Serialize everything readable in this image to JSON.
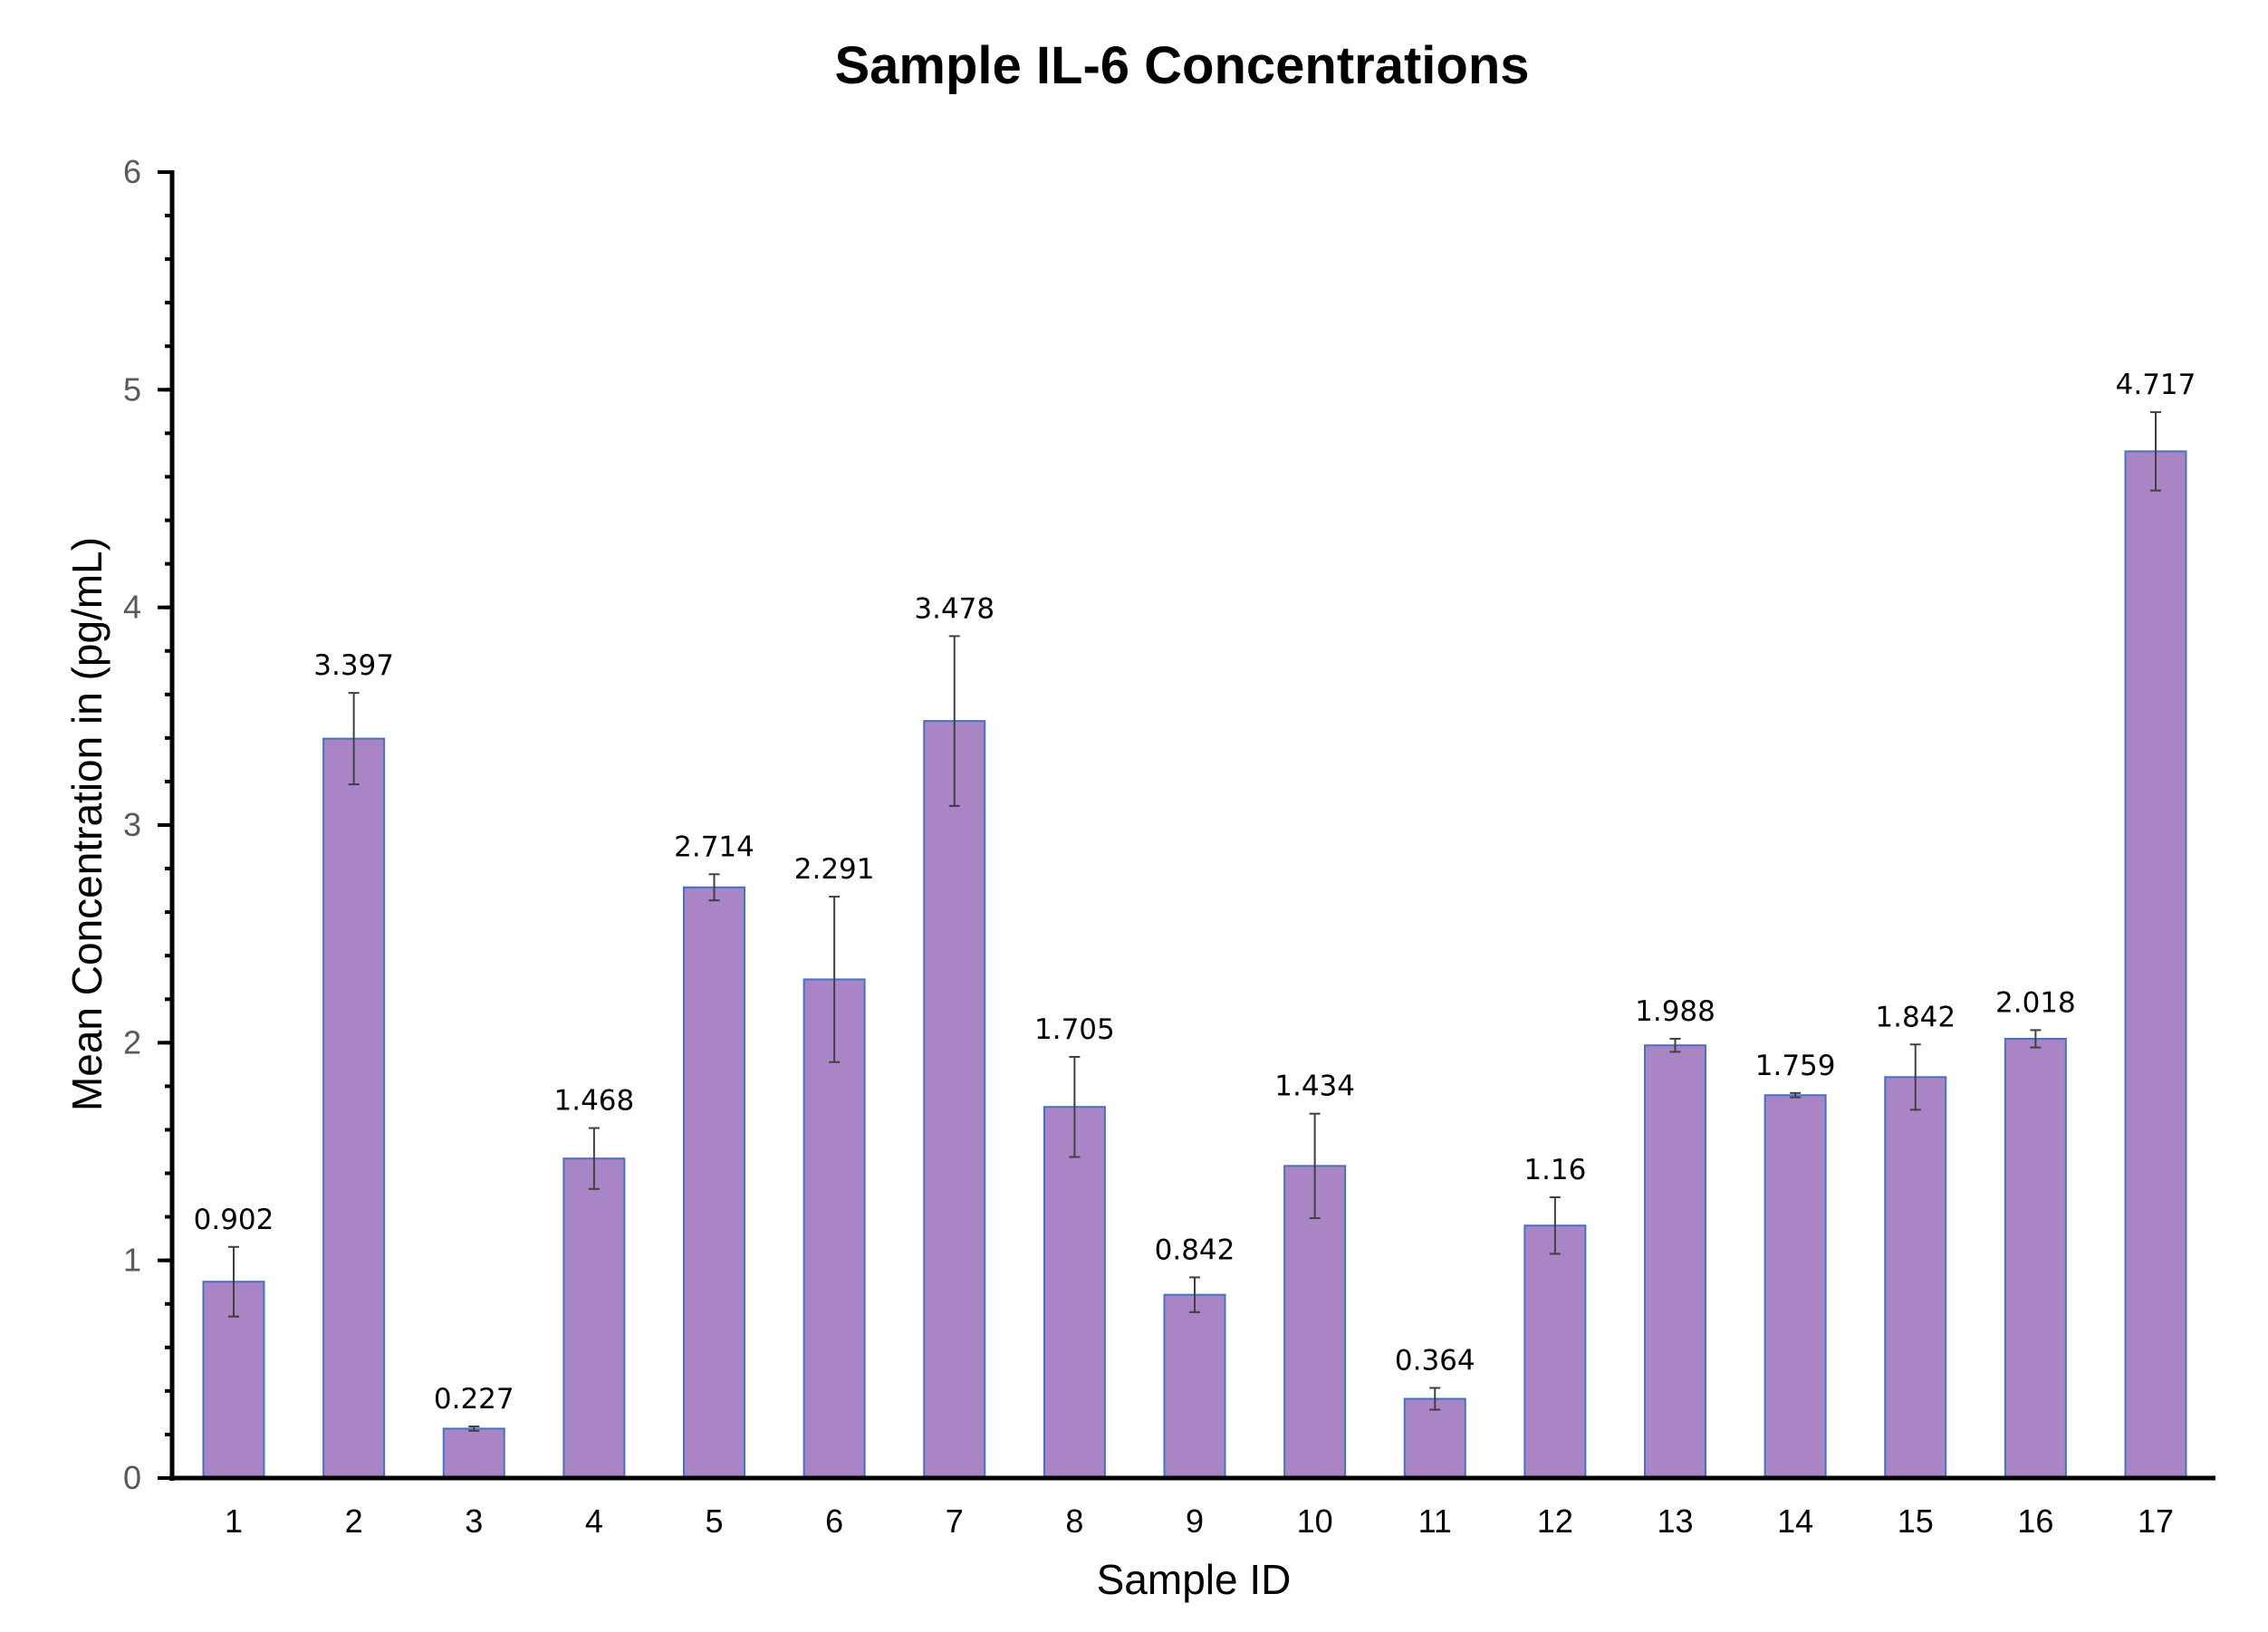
{
  "chart_data": {
    "type": "bar",
    "title": "Sample IL-6 Concentrations",
    "xlabel": "Sample ID",
    "ylabel": "Mean Concentration in (pg/mL)",
    "ylim": [
      0,
      6
    ],
    "yticks": [
      0,
      1,
      2,
      3,
      4,
      5,
      6
    ],
    "y_minor_step": 0.2,
    "grid": false,
    "categories": [
      "1",
      "2",
      "3",
      "4",
      "5",
      "6",
      "7",
      "8",
      "9",
      "10",
      "11",
      "12",
      "13",
      "14",
      "15",
      "16",
      "17"
    ],
    "values": [
      0.902,
      3.397,
      0.227,
      1.468,
      2.714,
      2.291,
      3.478,
      1.705,
      0.842,
      1.434,
      0.364,
      1.16,
      1.988,
      1.759,
      1.842,
      2.018,
      4.717
    ],
    "data_labels": [
      "0.902",
      "3.397",
      "0.227",
      "1.468",
      "2.714",
      "2.291",
      "3.478",
      "1.705",
      "0.842",
      "1.434",
      "0.364",
      "1.16",
      "1.988",
      "1.759",
      "1.842",
      "2.018",
      "4.717"
    ],
    "error": [
      0.16,
      0.21,
      0.01,
      0.14,
      0.06,
      0.38,
      0.39,
      0.23,
      0.08,
      0.24,
      0.05,
      0.13,
      0.03,
      0.01,
      0.15,
      0.04,
      0.18
    ],
    "colors": {
      "bar_fill": "#A985C6",
      "bar_edge": "#4472C4",
      "error_bar": "#404040",
      "axis": "#000000"
    }
  }
}
